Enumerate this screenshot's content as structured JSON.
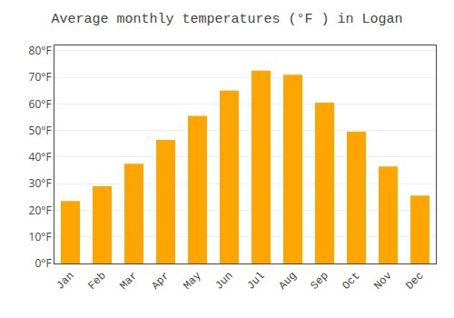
{
  "chart_data": {
    "type": "bar",
    "title": "Average monthly temperatures (°F ) in Logan",
    "categories": [
      "Jan",
      "Feb",
      "Mar",
      "Apr",
      "May",
      "Jun",
      "Jul",
      "Aug",
      "Sep",
      "Oct",
      "Nov",
      "Dec"
    ],
    "values": [
      23.5,
      29.0,
      37.5,
      46.5,
      55.5,
      65.0,
      72.5,
      71.0,
      60.5,
      49.5,
      36.5,
      25.5
    ],
    "color": "#FFA500",
    "ylim": [
      0,
      82
    ],
    "yticks": [
      {
        "value": 0,
        "label": "0°F"
      },
      {
        "value": 10,
        "label": "10°F"
      },
      {
        "value": 20,
        "label": "20°F"
      },
      {
        "value": 30,
        "label": "30°F"
      },
      {
        "value": 40,
        "label": "40°F"
      },
      {
        "value": 50,
        "label": "50°F"
      },
      {
        "value": 60,
        "label": "60°F"
      },
      {
        "value": 70,
        "label": "70°F"
      },
      {
        "value": 80,
        "label": "80°F"
      }
    ],
    "grid": true
  }
}
